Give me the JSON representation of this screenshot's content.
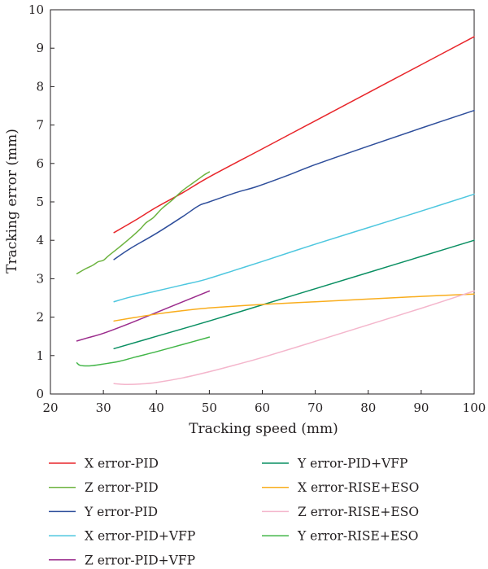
{
  "chart_data": {
    "type": "line",
    "title": "",
    "xlabel": "Tracking speed (mm)",
    "ylabel": "Tracking error (mm)",
    "xlim": [
      20,
      100
    ],
    "ylim": [
      0,
      10
    ],
    "xticks": [
      20,
      30,
      40,
      50,
      60,
      70,
      80,
      90,
      100
    ],
    "yticks": [
      0,
      1,
      2,
      3,
      4,
      5,
      6,
      7,
      8,
      9,
      10
    ],
    "grid": false,
    "legend_position": "below",
    "series": [
      {
        "name": "X error-PID",
        "color": "#e8262b",
        "x": [
          32,
          36,
          40,
          45,
          50,
          60,
          70,
          80,
          90,
          100
        ],
        "y": [
          4.2,
          4.52,
          4.86,
          5.24,
          5.65,
          6.38,
          7.11,
          7.84,
          8.57,
          9.3
        ]
      },
      {
        "name": "Z error-PID",
        "color": "#6cb33f",
        "x": [
          25,
          26.5,
          28,
          29,
          30,
          31,
          33,
          35,
          37,
          38,
          39.5,
          41,
          43,
          45,
          47,
          48,
          49,
          50
        ],
        "y": [
          3.13,
          3.25,
          3.35,
          3.44,
          3.48,
          3.6,
          3.82,
          4.05,
          4.3,
          4.45,
          4.6,
          4.82,
          5.05,
          5.3,
          5.5,
          5.6,
          5.7,
          5.78
        ]
      },
      {
        "name": "Y error-PID",
        "color": "#2e4e9b",
        "x": [
          32,
          35,
          40,
          45,
          48,
          50,
          55,
          59,
          65,
          70,
          80,
          90,
          100
        ],
        "y": [
          3.5,
          3.78,
          4.18,
          4.62,
          4.9,
          5.0,
          5.24,
          5.4,
          5.7,
          5.97,
          6.45,
          6.92,
          7.38
        ]
      },
      {
        "name": "X error-PID+VFP",
        "color": "#4ec7df",
        "x": [
          32,
          35,
          40,
          45,
          49,
          55,
          60,
          70,
          80,
          90,
          100
        ],
        "y": [
          2.4,
          2.52,
          2.68,
          2.84,
          2.97,
          3.23,
          3.45,
          3.9,
          4.33,
          4.76,
          5.2
        ]
      },
      {
        "name": "Z error-PID+VFP",
        "color": "#9b2c8c",
        "x": [
          25,
          27,
          30,
          35,
          40,
          45,
          50
        ],
        "y": [
          1.38,
          1.46,
          1.58,
          1.84,
          2.12,
          2.4,
          2.68
        ]
      },
      {
        "name": "Y error-PID+VFP",
        "color": "#0a8f62",
        "x": [
          32,
          40,
          50,
          60,
          70,
          80,
          90,
          100
        ],
        "y": [
          1.18,
          1.5,
          1.9,
          2.32,
          2.74,
          3.16,
          3.58,
          4.0
        ]
      },
      {
        "name": "X error-RISE+ESO",
        "color": "#f9ad1d",
        "x": [
          32,
          35,
          40,
          45,
          50,
          60,
          70,
          80,
          90,
          100
        ],
        "y": [
          1.9,
          1.97,
          2.08,
          2.17,
          2.24,
          2.33,
          2.4,
          2.47,
          2.54,
          2.6
        ]
      },
      {
        "name": "Z error-RISE+ESO",
        "color": "#f4b6cc",
        "x": [
          32,
          34,
          37,
          40,
          45,
          50,
          55,
          60,
          70,
          80,
          90,
          100
        ],
        "y": [
          0.27,
          0.25,
          0.26,
          0.3,
          0.42,
          0.58,
          0.76,
          0.95,
          1.37,
          1.8,
          2.23,
          2.68
        ]
      },
      {
        "name": "Y error-RISE+ESO",
        "color": "#43b649",
        "x": [
          25,
          25.5,
          26.5,
          28,
          30,
          33,
          36,
          40,
          45,
          50
        ],
        "y": [
          0.81,
          0.75,
          0.73,
          0.74,
          0.78,
          0.85,
          0.96,
          1.1,
          1.29,
          1.48
        ]
      }
    ]
  }
}
